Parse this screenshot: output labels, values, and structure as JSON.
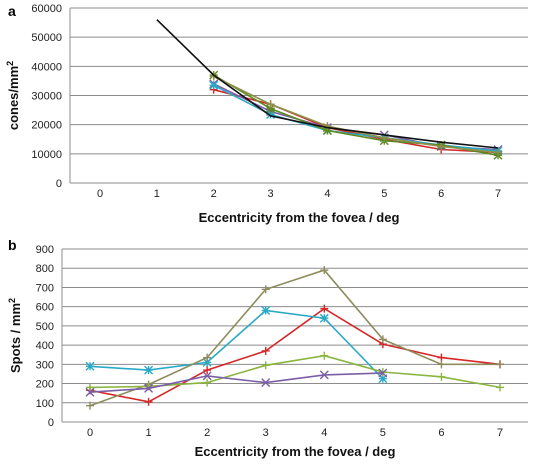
{
  "chart_data": [
    {
      "panel": "a",
      "type": "line",
      "xlabel": "Eccentricity from the fovea / deg",
      "ylabel": "cones/mm",
      "ylabel_sup": "2",
      "x_ticks": [
        "0",
        "1",
        "2",
        "3",
        "4",
        "5",
        "6",
        "7"
      ],
      "y_ticks": [
        "0",
        "10000",
        "20000",
        "30000",
        "40000",
        "50000",
        "60000"
      ],
      "xlim": [
        0,
        7
      ],
      "ylim": [
        0,
        60000
      ],
      "grid": "horizontal",
      "series": [
        {
          "color": "#d62728",
          "marker": "plus",
          "x": [
            2,
            3,
            4,
            5,
            6,
            7
          ],
          "values": [
            32000,
            27000,
            19000,
            15000,
            11500,
            10500
          ]
        },
        {
          "color": "#7b5ea7",
          "marker": "x",
          "x": [
            2,
            3,
            4,
            5,
            6,
            7
          ],
          "values": [
            34000,
            24500,
            19000,
            16500,
            12500,
            11500
          ]
        },
        {
          "color": "#2aa9c7",
          "marker": "star",
          "x": [
            2,
            3,
            4,
            5,
            6,
            7
          ],
          "values": [
            33500,
            23500,
            18000,
            15500,
            13000,
            11000
          ]
        },
        {
          "color": "#5c8a1f",
          "marker": "star",
          "x": [
            2,
            3,
            4,
            5,
            6,
            7
          ],
          "values": [
            37000,
            25500,
            18000,
            14500,
            13000,
            9500
          ]
        },
        {
          "color": "#8f8f4a",
          "marker": "plus",
          "x": [
            2,
            3,
            4,
            5,
            6,
            7
          ],
          "values": [
            36500,
            27000,
            19500,
            15500,
            12500,
            10500
          ]
        },
        {
          "color": "#111111",
          "marker": "none",
          "x": [
            1,
            2,
            3,
            4,
            5,
            6,
            7
          ],
          "values": [
            56000,
            37000,
            23000,
            19000,
            16500,
            14000,
            12000
          ]
        }
      ]
    },
    {
      "panel": "b",
      "type": "line",
      "xlabel": "Eccentricity from the fovea / deg",
      "ylabel": "Spots / mm",
      "ylabel_sup": "2",
      "x_ticks": [
        "0",
        "1",
        "2",
        "3",
        "4",
        "5",
        "6",
        "7"
      ],
      "y_ticks": [
        "0",
        "100",
        "200",
        "300",
        "400",
        "500",
        "600",
        "700",
        "800",
        "900"
      ],
      "xlim": [
        0,
        7
      ],
      "ylim": [
        0,
        900
      ],
      "grid": "horizontal",
      "series": [
        {
          "color": "#d62728",
          "marker": "plus",
          "x": [
            0,
            1,
            2,
            3,
            4,
            5,
            6,
            7
          ],
          "values": [
            165,
            105,
            270,
            370,
            590,
            405,
            335,
            300
          ]
        },
        {
          "color": "#2aa9c7",
          "marker": "star",
          "x": [
            0,
            1,
            2,
            3,
            4,
            5
          ],
          "values": [
            290,
            270,
            310,
            580,
            540,
            225
          ]
        },
        {
          "color": "#8c8c5c",
          "marker": "plus",
          "x": [
            0,
            1,
            2,
            3,
            4,
            5,
            6,
            7
          ],
          "values": [
            85,
            195,
            335,
            690,
            790,
            430,
            300,
            300
          ]
        },
        {
          "color": "#8ab63f",
          "marker": "plus",
          "x": [
            0,
            1,
            2,
            3,
            4,
            5,
            6,
            7
          ],
          "values": [
            180,
            185,
            205,
            295,
            345,
            260,
            235,
            180
          ]
        },
        {
          "color": "#7b5ea7",
          "marker": "x",
          "x": [
            0,
            1,
            2,
            3,
            4,
            5
          ],
          "values": [
            155,
            175,
            240,
            205,
            245,
            255
          ]
        }
      ]
    }
  ]
}
